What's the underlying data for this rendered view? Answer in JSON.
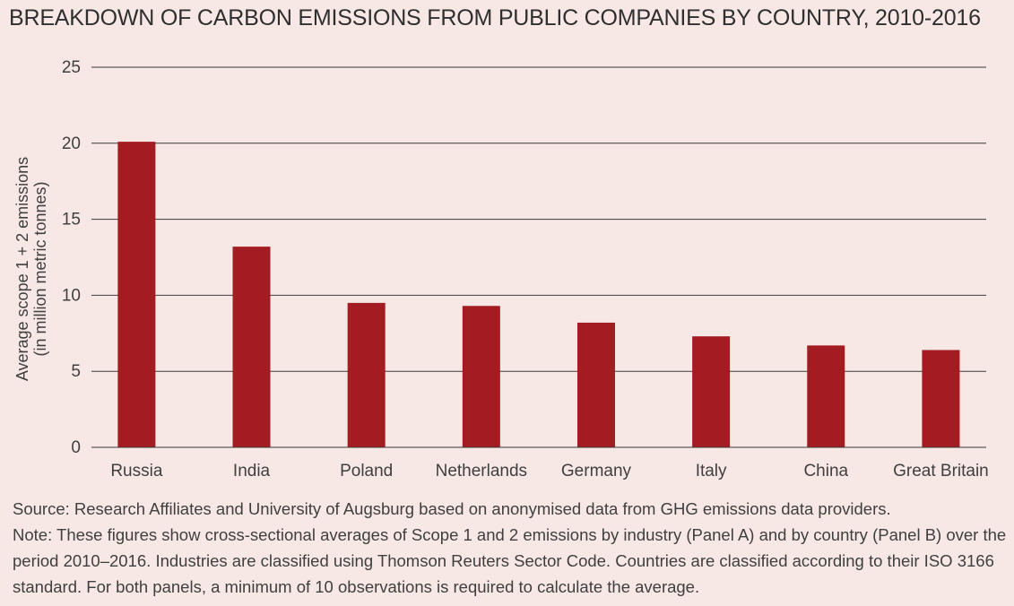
{
  "title": "BREAKDOWN OF CARBON EMISSIONS FROM PUBLIC COMPANIES BY COUNTRY, 2010-2016",
  "colors": {
    "bar": "#a31c22",
    "grid": "#3a3a3a",
    "text": "#3f3f3f",
    "background": "#f7e8e5"
  },
  "chart_data": {
    "type": "bar",
    "categories": [
      "Russia",
      "India",
      "Poland",
      "Netherlands",
      "Germany",
      "Italy",
      "China",
      "Great Britain"
    ],
    "values": [
      20.1,
      13.2,
      9.5,
      9.3,
      8.2,
      7.3,
      6.7,
      6.4
    ],
    "title": "BREAKDOWN OF CARBON EMISSIONS FROM PUBLIC COMPANIES BY COUNTRY, 2010-2016",
    "xlabel": "",
    "ylabel": "Average scope 1 + 2 emissions (in million metric tonnes)",
    "ylim": [
      0,
      25
    ],
    "yticks": [
      0,
      5,
      10,
      15,
      20,
      25
    ],
    "grid": true
  },
  "ylabel_line1": "Average scope 1 + 2 emissions",
  "ylabel_line2": "(in million metric tonnes)",
  "footnote": {
    "source": "Source: Research Affiliates and University of Augsburg based on anonymised data from GHG emissions data providers.",
    "note": "Note: These figures show cross-sectional averages of Scope 1 and 2 emissions by industry (Panel A) and by country (Panel B) over the period 2010–2016. Industries are classified using Thomson Reuters Sector Code. Countries are classified according to their ISO 3166 standard. For both panels, a minimum of 10 observations is required to calculate the average."
  }
}
